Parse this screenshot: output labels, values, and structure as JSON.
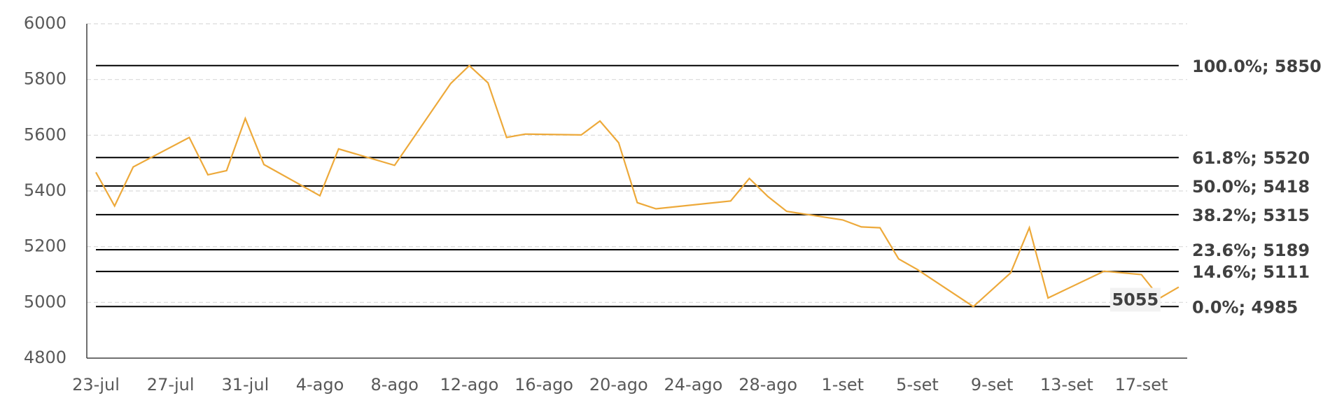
{
  "chart_data": {
    "type": "line",
    "x": [
      "23-jul",
      "24-jul",
      "25-jul",
      "28-jul",
      "29-jul",
      "30-jul",
      "31-jul",
      "1-ago",
      "4-ago",
      "5-ago",
      "8-ago",
      "11-ago",
      "12-ago",
      "13-ago",
      "14-ago",
      "15-ago",
      "18-ago",
      "19-ago",
      "20-ago",
      "21-ago",
      "22-ago",
      "26-ago",
      "27-ago",
      "28-ago",
      "29-ago",
      "1-set",
      "2-set",
      "3-set",
      "4-set",
      "5-set",
      "8-set",
      "10-set",
      "11-set",
      "12-set",
      "15-set",
      "17-set",
      "18-set",
      "19-set"
    ],
    "series": [
      {
        "color": "#eda93a",
        "values": [
          5467,
          5346,
          5486,
          5592,
          5458,
          5473,
          5660,
          5495,
          5383,
          5551,
          5492,
          5785,
          5850,
          5788,
          5592,
          5604,
          5601,
          5651,
          5573,
          5358,
          5336,
          5364,
          5445,
          5380,
          5327,
          5296,
          5271,
          5268,
          5156,
          5118,
          4985,
          5106,
          5268,
          5016,
          5112,
          5100,
          5016,
          5055
        ],
        "value_labels": [
          null,
          null,
          null,
          null,
          null,
          null,
          null,
          null,
          null,
          null,
          null,
          null,
          null,
          null,
          null,
          null,
          null,
          null,
          null,
          null,
          null,
          null,
          null,
          null,
          null,
          null,
          null,
          null,
          null,
          null,
          null,
          null,
          null,
          null,
          null,
          null,
          null,
          "5055"
        ]
      }
    ],
    "xticks": [
      "23-jul",
      "27-jul",
      "31-jul",
      "4-ago",
      "8-ago",
      "12-ago",
      "16-ago",
      "20-ago",
      "24-ago",
      "28-ago",
      "1-set",
      "5-set",
      "9-set",
      "13-set",
      "17-set"
    ],
    "ylim": [
      4800,
      6000
    ],
    "yticks": [
      4800,
      5000,
      5200,
      5400,
      5600,
      5800,
      6000
    ],
    "grid": true,
    "levels": [
      {
        "value": 5850,
        "label": "100.0%; 5850"
      },
      {
        "value": 5520,
        "label": "61.8%; 5520"
      },
      {
        "value": 5418,
        "label": "50.0%; 5418"
      },
      {
        "value": 5315,
        "label": "38.2%; 5315"
      },
      {
        "value": 5189,
        "label": "23.6%; 5189"
      },
      {
        "value": 5111,
        "label": "14.6%; 5111"
      },
      {
        "value": 4985,
        "label": "0.0%; 4985"
      }
    ]
  }
}
